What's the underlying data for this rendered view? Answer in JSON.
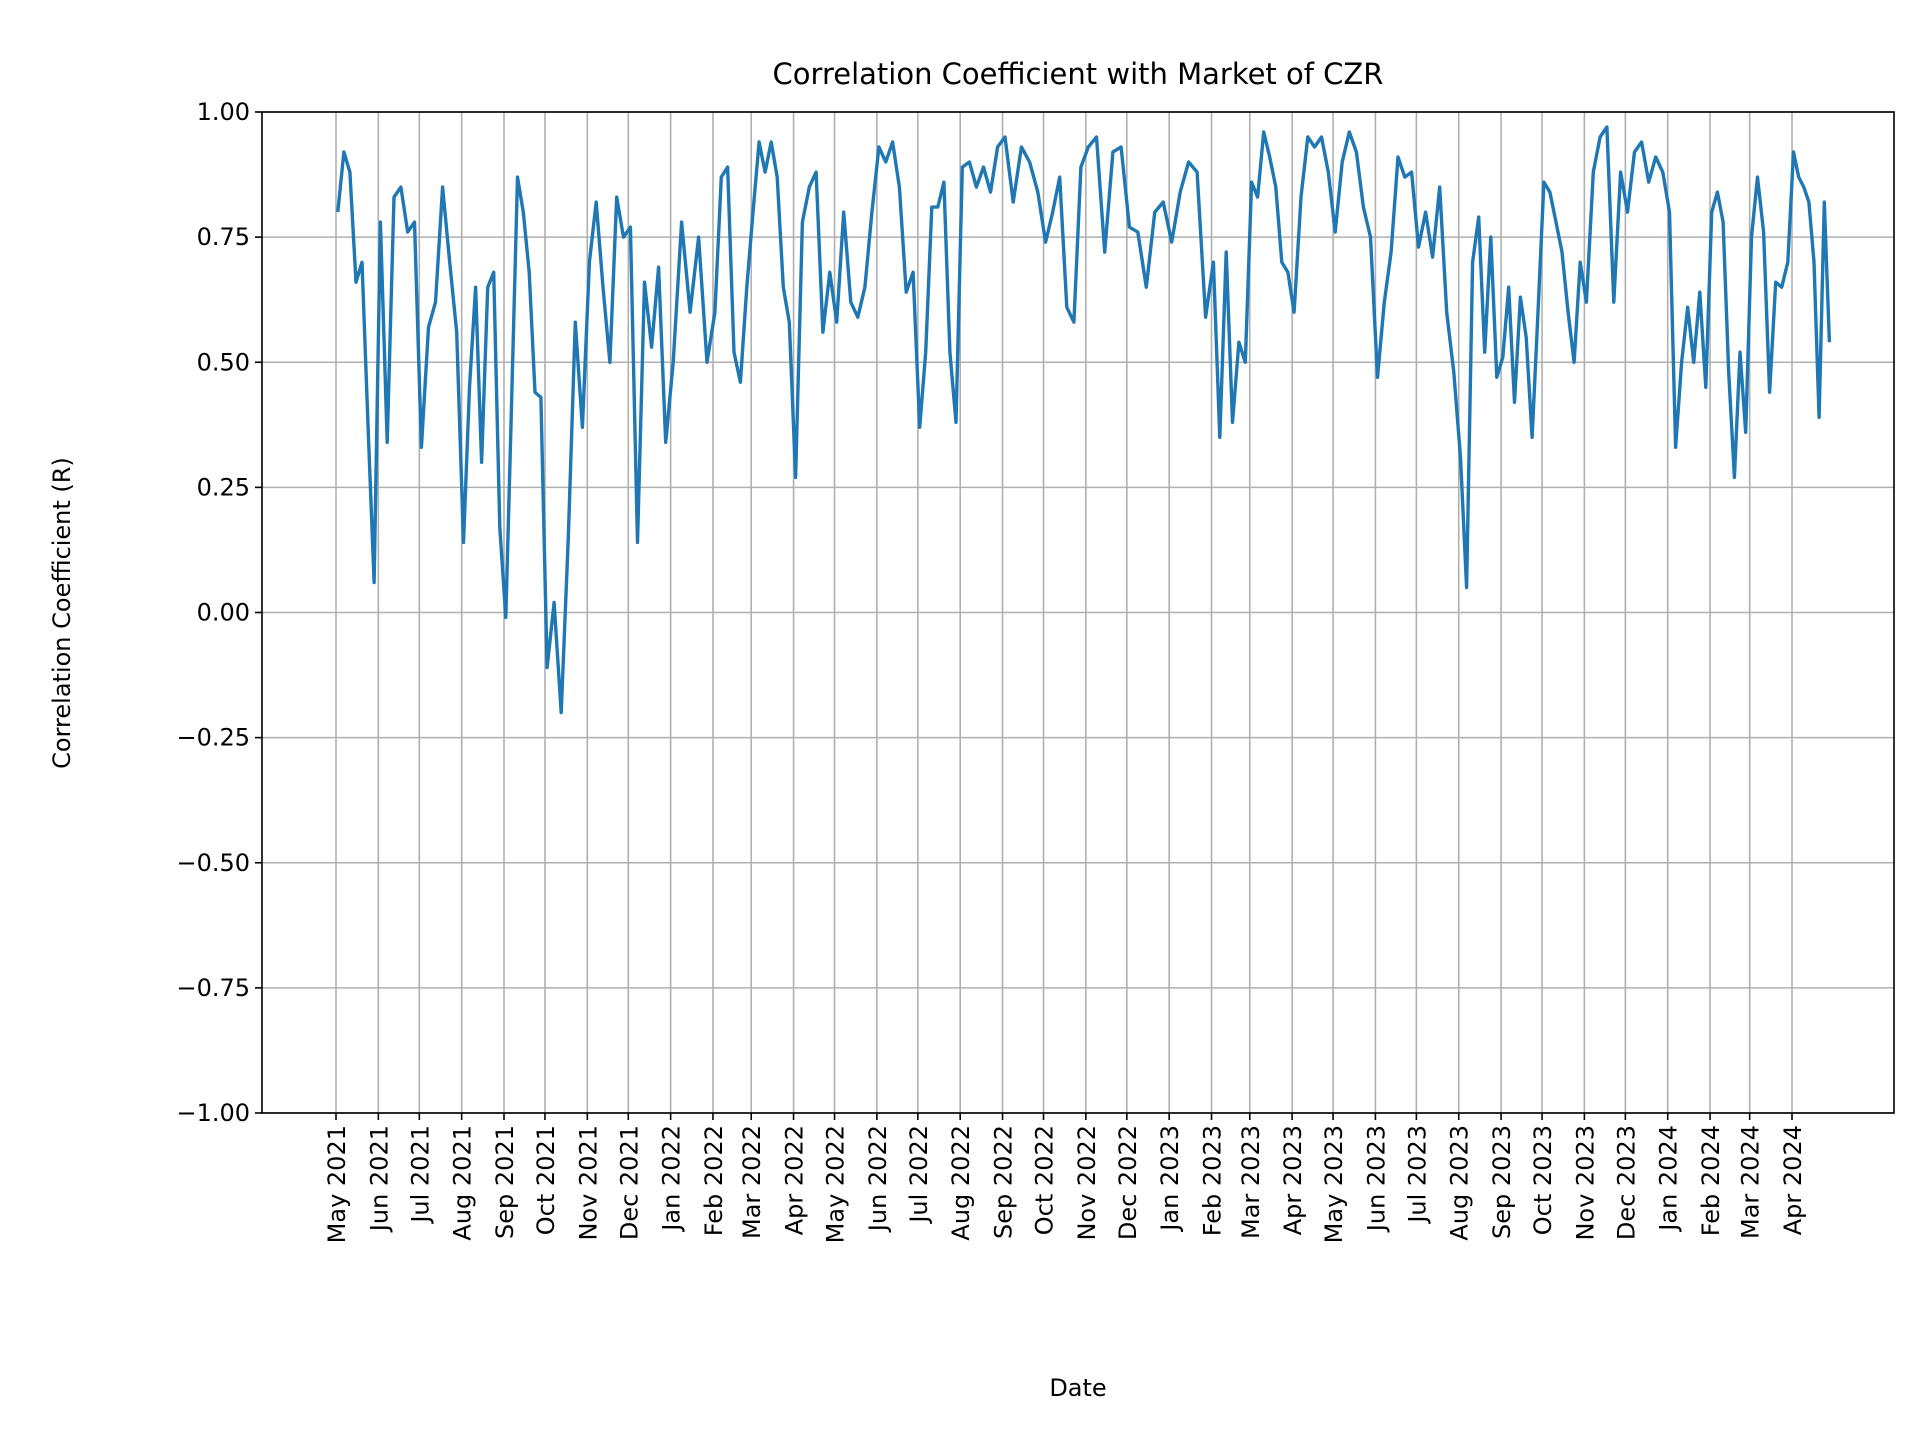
{
  "chart_data": {
    "type": "line",
    "title": "Correlation Coefficient with Market of CZR",
    "xlabel": "Date",
    "ylabel": "Correlation Coefficient (R)",
    "ylim": [
      -1.0,
      1.0
    ],
    "yticks": [
      "1.00",
      "0.75",
      "0.50",
      "0.25",
      "0.00",
      "−0.25",
      "−0.50",
      "−0.75",
      "−1.00"
    ],
    "ytick_values": [
      1.0,
      0.75,
      0.5,
      0.25,
      0.0,
      -0.25,
      -0.5,
      -0.75,
      -1.0
    ],
    "xticks": [
      "May 2021",
      "Jun 2021",
      "Jul 2021",
      "Aug 2021",
      "Sep 2021",
      "Oct 2021",
      "Nov 2021",
      "Dec 2021",
      "Jan 2022",
      "Feb 2022",
      "Mar 2022",
      "Apr 2022",
      "May 2022",
      "Jun 2022",
      "Jul 2022",
      "Aug 2022",
      "Sep 2022",
      "Oct 2022",
      "Nov 2022",
      "Dec 2022",
      "Jan 2023",
      "Feb 2023",
      "Mar 2023",
      "Apr 2023",
      "May 2023",
      "Jun 2023",
      "Jul 2023",
      "Aug 2023",
      "Sep 2023",
      "Oct 2023",
      "Nov 2023",
      "Dec 2023",
      "Jan 2024",
      "Feb 2024",
      "Mar 2024",
      "Apr 2024"
    ],
    "grid": true,
    "color": "#1f77b4",
    "series_by_month": [
      {
        "month": "2021-05",
        "values": [
          0.8,
          0.92,
          0.88,
          0.66,
          0.7,
          0.37,
          0.06
        ]
      },
      {
        "month": "2021-06",
        "values": [
          0.78,
          0.34,
          0.83,
          0.85,
          0.76,
          0.78
        ]
      },
      {
        "month": "2021-07",
        "values": [
          0.33,
          0.57,
          0.62,
          0.85,
          0.7,
          0.56
        ]
      },
      {
        "month": "2021-08",
        "values": [
          0.14,
          0.45,
          0.65,
          0.3,
          0.65,
          0.68,
          0.17
        ]
      },
      {
        "month": "2021-09",
        "values": [
          -0.01,
          0.42,
          0.87,
          0.8,
          0.68,
          0.44,
          0.43
        ]
      },
      {
        "month": "2021-10",
        "values": [
          -0.11,
          0.02,
          -0.2,
          0.15,
          0.58,
          0.37
        ]
      },
      {
        "month": "2021-11",
        "values": [
          0.7,
          0.82,
          0.65,
          0.5,
          0.83,
          0.75
        ]
      },
      {
        "month": "2021-12",
        "values": [
          0.77,
          0.14,
          0.66,
          0.53,
          0.69,
          0.34
        ]
      },
      {
        "month": "2022-01",
        "values": [
          0.5,
          0.78,
          0.6,
          0.75,
          0.5
        ]
      },
      {
        "month": "2022-02",
        "values": [
          0.6,
          0.87,
          0.89,
          0.52,
          0.46,
          0.65
        ]
      },
      {
        "month": "2022-03",
        "values": [
          0.8,
          0.94,
          0.88,
          0.94,
          0.87,
          0.65,
          0.58
        ]
      },
      {
        "month": "2022-04",
        "values": [
          0.27,
          0.78,
          0.85,
          0.88,
          0.56,
          0.68
        ]
      },
      {
        "month": "2022-05",
        "values": [
          0.58,
          0.8,
          0.62,
          0.59,
          0.65,
          0.8
        ]
      },
      {
        "month": "2022-06",
        "values": [
          0.93,
          0.9,
          0.94,
          0.85,
          0.64,
          0.68
        ]
      },
      {
        "month": "2022-07",
        "values": [
          0.37,
          0.52,
          0.81,
          0.81,
          0.86,
          0.52,
          0.38
        ]
      },
      {
        "month": "2022-08",
        "values": [
          0.89,
          0.9,
          0.85,
          0.89,
          0.84,
          0.93
        ]
      },
      {
        "month": "2022-09",
        "values": [
          0.95,
          0.82,
          0.93,
          0.9,
          0.84
        ]
      },
      {
        "month": "2022-10",
        "values": [
          0.74,
          0.8,
          0.87,
          0.61,
          0.58,
          0.89
        ]
      },
      {
        "month": "2022-11",
        "values": [
          0.93,
          0.95,
          0.72,
          0.92,
          0.93
        ]
      },
      {
        "month": "2022-12",
        "values": [
          0.77,
          0.76,
          0.65,
          0.8,
          0.82
        ]
      },
      {
        "month": "2023-01",
        "values": [
          0.74,
          0.84,
          0.9,
          0.88,
          0.59
        ]
      },
      {
        "month": "2023-02",
        "values": [
          0.7,
          0.35,
          0.72,
          0.38,
          0.54,
          0.5
        ]
      },
      {
        "month": "2023-03",
        "values": [
          0.86,
          0.83,
          0.96,
          0.91,
          0.85,
          0.7,
          0.68
        ]
      },
      {
        "month": "2023-04",
        "values": [
          0.6,
          0.83,
          0.95,
          0.93,
          0.95,
          0.88
        ]
      },
      {
        "month": "2023-05",
        "values": [
          0.76,
          0.9,
          0.96,
          0.92,
          0.81,
          0.75
        ]
      },
      {
        "month": "2023-06",
        "values": [
          0.47,
          0.62,
          0.72,
          0.91,
          0.87,
          0.88
        ]
      },
      {
        "month": "2023-07",
        "values": [
          0.73,
          0.8,
          0.71,
          0.85,
          0.6,
          0.48
        ]
      },
      {
        "month": "2023-08",
        "values": [
          0.31,
          0.05,
          0.7,
          0.79,
          0.52,
          0.75,
          0.47
        ]
      },
      {
        "month": "2023-09",
        "values": [
          0.51,
          0.65,
          0.42,
          0.63,
          0.55,
          0.35,
          0.6
        ]
      },
      {
        "month": "2023-10",
        "values": [
          0.86,
          0.84,
          0.78,
          0.72,
          0.6,
          0.5,
          0.7
        ]
      },
      {
        "month": "2023-11",
        "values": [
          0.62,
          0.88,
          0.95,
          0.97,
          0.62,
          0.88
        ]
      },
      {
        "month": "2023-12",
        "values": [
          0.8,
          0.92,
          0.94,
          0.86,
          0.91,
          0.88
        ]
      },
      {
        "month": "2024-01",
        "values": [
          0.8,
          0.33,
          0.5,
          0.61,
          0.5,
          0.64,
          0.45
        ]
      },
      {
        "month": "2024-02",
        "values": [
          0.8,
          0.84,
          0.78,
          0.48,
          0.27,
          0.52,
          0.36
        ]
      },
      {
        "month": "2024-03",
        "values": [
          0.75,
          0.87,
          0.76,
          0.44,
          0.66,
          0.65,
          0.7
        ]
      },
      {
        "month": "2024-04",
        "values": [
          0.92,
          0.87,
          0.85,
          0.82,
          0.7,
          0.39,
          0.82,
          0.54
        ]
      }
    ]
  }
}
